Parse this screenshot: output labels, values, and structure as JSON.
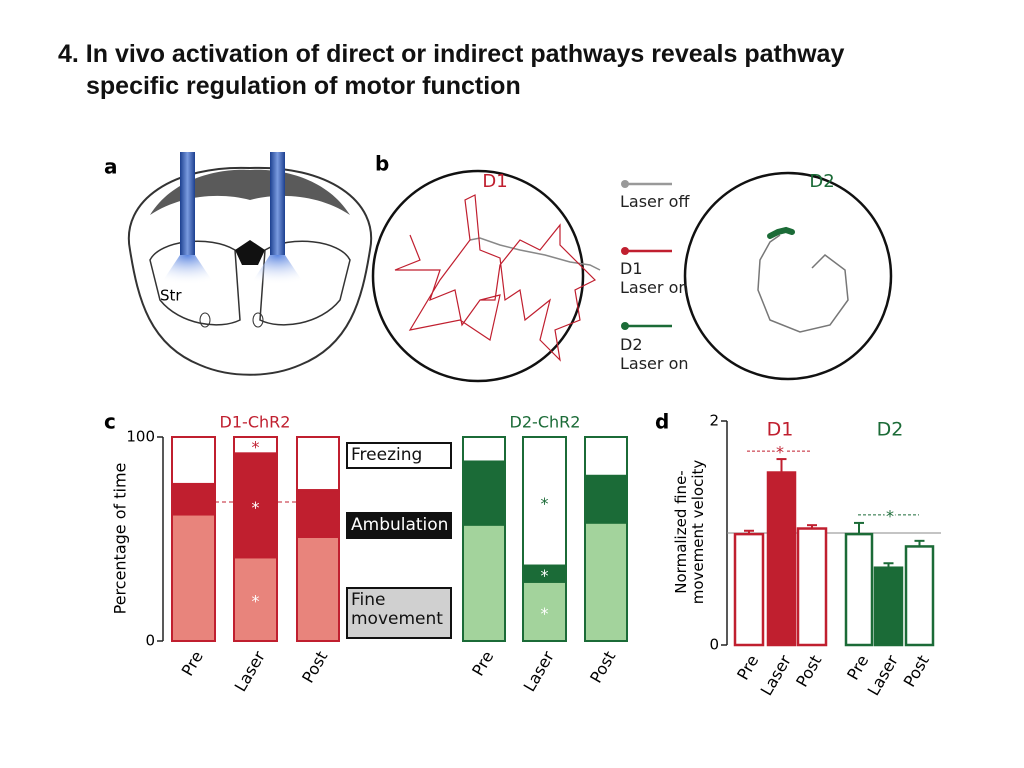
{
  "title": "4. In vivo activation of direct or indirect pathways reveals pathway\nspecific regulation of motor function",
  "panel_a": {
    "label": "a",
    "region": "Str"
  },
  "panel_b": {
    "label": "b",
    "arenas": [
      "D1",
      "D2"
    ],
    "legend": [
      "Laser off",
      "D1\nLaser on",
      "D2\nLaser on"
    ]
  },
  "chart_data": [
    {
      "label": "c",
      "type": "stacked_bar",
      "ylabel": "Percentage of time",
      "ylim": [
        0,
        100
      ],
      "yticks": [
        0,
        100
      ],
      "groups": [
        "D1-ChR2",
        "D2-ChR2"
      ],
      "group_colors": [
        [
          "#e8847c",
          "#c01f2f",
          "#ffffff"
        ],
        [
          "#a3d39c",
          "#1b6b37",
          "#ffffff"
        ]
      ],
      "categories": [
        "Pre",
        "Laser",
        "Post",
        "Pre",
        "Laser",
        "Post"
      ],
      "series": [
        {
          "name": "Fine movement",
          "values": [
            62,
            41,
            51,
            57,
            29,
            58
          ],
          "labels": [
            null,
            "*",
            null,
            null,
            "*",
            null
          ]
        },
        {
          "name": "Ambulation",
          "values": [
            15,
            51,
            23,
            31,
            8,
            23
          ],
          "labels": [
            null,
            "*",
            null,
            null,
            "*",
            null
          ]
        },
        {
          "name": "Freezing",
          "values": [
            23,
            8,
            26,
            12,
            63,
            19
          ],
          "labels": [
            null,
            "*",
            null,
            null,
            "*",
            null
          ]
        }
      ]
    },
    {
      "label": "d",
      "type": "bar",
      "ylabel": "Normalized fine-\nmovement  velocity",
      "ylim": [
        0,
        2
      ],
      "yticks": [
        0,
        2
      ],
      "reference": 1,
      "groups": [
        "D1",
        "D2"
      ],
      "group_colors": [
        "#c01f2f",
        "#1b6b37"
      ],
      "group_annotations": [
        "*",
        "*"
      ],
      "categories": [
        "Pre",
        "Laser",
        "Post",
        "Pre",
        "Laser",
        "Post"
      ],
      "values": [
        0.99,
        1.54,
        1.04,
        0.99,
        0.69,
        0.88
      ],
      "errors": [
        0.03,
        0.12,
        0.03,
        0.1,
        0.04,
        0.05
      ],
      "filled": [
        false,
        true,
        false,
        false,
        true,
        false
      ]
    }
  ]
}
